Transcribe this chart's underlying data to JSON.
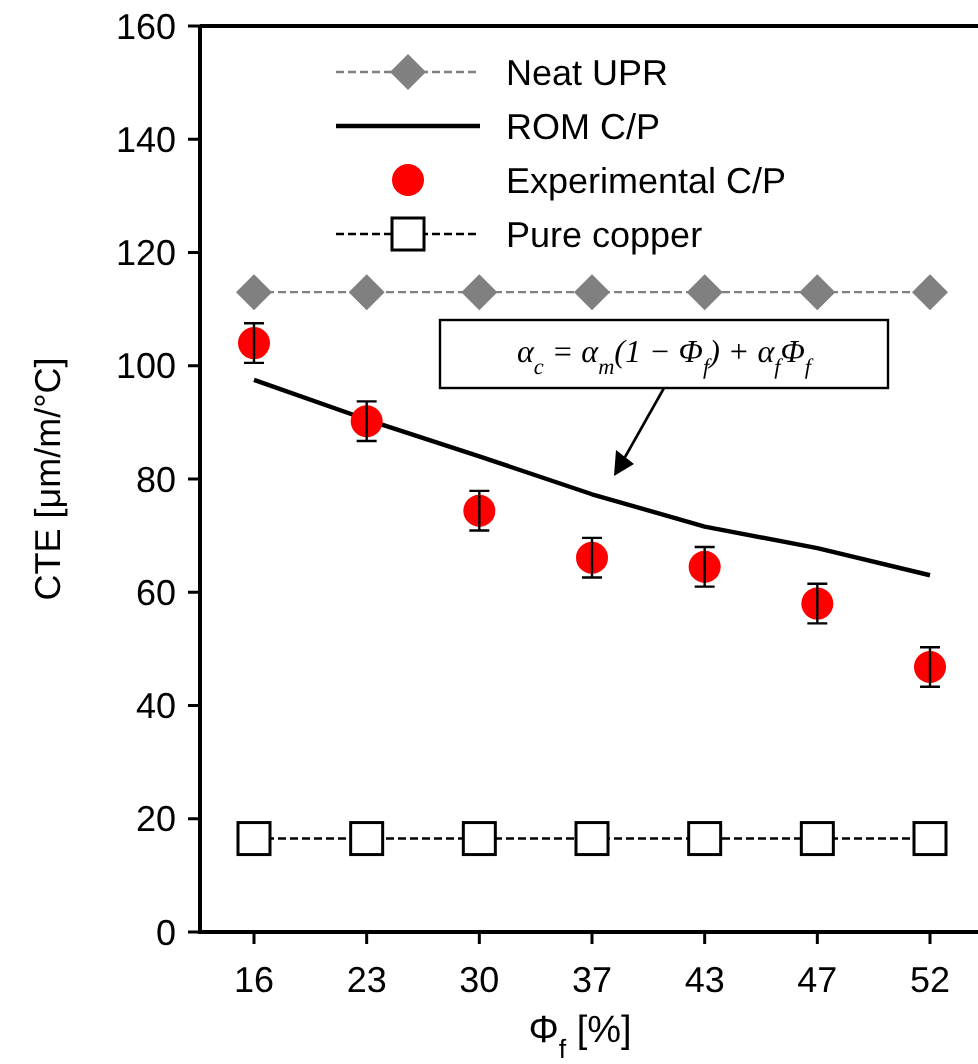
{
  "chart_data": {
    "type": "line",
    "xlabel": "Φ$_{f}$ [%]",
    "ylabel": "CTE [μm/m/°C]",
    "categories": [
      "16",
      "23",
      "30",
      "37",
      "43",
      "47",
      "52"
    ],
    "ylim": [
      0,
      160
    ],
    "yticks": [
      0,
      20,
      40,
      60,
      80,
      100,
      120,
      140,
      160
    ],
    "grid": false,
    "legend": "top",
    "series": [
      {
        "name": "Neat UPR",
        "color": "#808080",
        "marker": "diamond",
        "line_style": "dashed",
        "values": [
          113,
          113,
          113,
          113,
          113,
          113,
          113
        ]
      },
      {
        "name": "ROM C/P",
        "color": "#000000",
        "marker": "none",
        "line_style": "solid",
        "values": [
          97.5,
          90.5,
          84,
          77.3,
          71.6,
          67.8,
          63
        ]
      },
      {
        "name": "Experimental C/P",
        "type": "scatter",
        "color": "#ff0000",
        "marker": "circle",
        "values": [
          104,
          90.2,
          74.4,
          66.1,
          64.5,
          58,
          46.8
        ],
        "errors": [
          3.5,
          3.5,
          3.5,
          3.5,
          3.5,
          3.5,
          3.5
        ]
      },
      {
        "name": "Pure copper",
        "color": "#000000",
        "marker": "square",
        "line_style": "dashed",
        "values": [
          16.5,
          16.5,
          16.5,
          16.5,
          16.5,
          16.5,
          16.5
        ]
      }
    ],
    "annotations": [
      "α$_{c}$ = α$_{m}$(1 − Φ$_{f}$) + α$_{f}$Φ$_{f}$"
    ]
  }
}
